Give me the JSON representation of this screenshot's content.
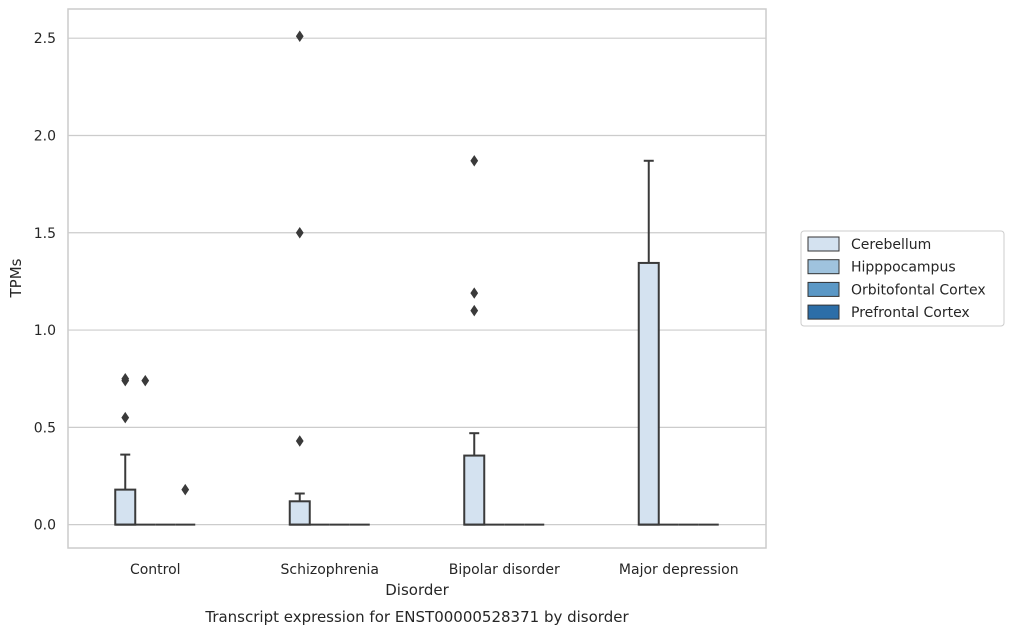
{
  "chart_data": {
    "type": "box",
    "caption": "Transcript expression for ENST00000528371 by disorder",
    "xlabel": "Disorder",
    "ylabel": "TPMs",
    "ylim": [
      -0.12,
      2.65
    ],
    "yticks": [
      0.0,
      0.5,
      1.0,
      1.5,
      2.0,
      2.5
    ],
    "ytick_labels": [
      "0.0",
      "0.5",
      "1.0",
      "1.5",
      "2.0",
      "2.5"
    ],
    "grid": "horizontal",
    "legend_placement": "right",
    "categories": [
      "Control",
      "Schizophrenia",
      "Bipolar disorder",
      "Major depression"
    ],
    "series": [
      {
        "name": "Cerebellum",
        "color": "#d4e2f0",
        "boxes": [
          {
            "min": 0.0,
            "q1": 0.0,
            "median": 0.0,
            "q3": 0.18,
            "max": 0.36,
            "outliers": [
              0.55,
              0.74,
              0.75
            ]
          },
          {
            "min": 0.0,
            "q1": 0.0,
            "median": 0.0,
            "q3": 0.12,
            "max": 0.16,
            "outliers": [
              0.43,
              1.5,
              2.51
            ]
          },
          {
            "min": 0.0,
            "q1": 0.0,
            "median": 0.0,
            "q3": 0.355,
            "max": 0.47,
            "outliers": [
              1.1,
              1.19,
              1.87
            ]
          },
          {
            "min": 0.0,
            "q1": 0.0,
            "median": 0.0,
            "q3": 1.345,
            "max": 1.87,
            "outliers": []
          }
        ]
      },
      {
        "name": "Hipppocampus",
        "color": "#9fc3de",
        "boxes": [
          {
            "min": 0.0,
            "q1": 0.0,
            "median": 0.0,
            "q3": 0.0,
            "max": 0.0,
            "outliers": [
              0.74
            ]
          },
          {
            "min": 0.0,
            "q1": 0.0,
            "median": 0.0,
            "q3": 0.0,
            "max": 0.0,
            "outliers": []
          },
          {
            "min": 0.0,
            "q1": 0.0,
            "median": 0.0,
            "q3": 0.0,
            "max": 0.0,
            "outliers": []
          },
          {
            "min": 0.0,
            "q1": 0.0,
            "median": 0.0,
            "q3": 0.0,
            "max": 0.0,
            "outliers": []
          }
        ]
      },
      {
        "name": "Orbitofontal Cortex",
        "color": "#5b98c6",
        "boxes": [
          {
            "min": 0.0,
            "q1": 0.0,
            "median": 0.0,
            "q3": 0.0,
            "max": 0.0,
            "outliers": []
          },
          {
            "min": 0.0,
            "q1": 0.0,
            "median": 0.0,
            "q3": 0.0,
            "max": 0.0,
            "outliers": []
          },
          {
            "min": 0.0,
            "q1": 0.0,
            "median": 0.0,
            "q3": 0.0,
            "max": 0.0,
            "outliers": []
          },
          {
            "min": 0.0,
            "q1": 0.0,
            "median": 0.0,
            "q3": 0.0,
            "max": 0.0,
            "outliers": []
          }
        ]
      },
      {
        "name": "Prefrontal Cortex",
        "color": "#2c6ea8",
        "boxes": [
          {
            "min": 0.0,
            "q1": 0.0,
            "median": 0.0,
            "q3": 0.0,
            "max": 0.0,
            "outliers": [
              0.18
            ]
          },
          {
            "min": 0.0,
            "q1": 0.0,
            "median": 0.0,
            "q3": 0.0,
            "max": 0.0,
            "outliers": []
          },
          {
            "min": 0.0,
            "q1": 0.0,
            "median": 0.0,
            "q3": 0.0,
            "max": 0.0,
            "outliers": []
          },
          {
            "min": 0.0,
            "q1": 0.0,
            "median": 0.0,
            "q3": 0.0,
            "max": 0.0,
            "outliers": []
          }
        ]
      }
    ]
  },
  "colors": {
    "axes_frame": "#cccccc",
    "grid": "#cccccc",
    "box_edge": "#3a3a3a",
    "text": "#262626"
  }
}
